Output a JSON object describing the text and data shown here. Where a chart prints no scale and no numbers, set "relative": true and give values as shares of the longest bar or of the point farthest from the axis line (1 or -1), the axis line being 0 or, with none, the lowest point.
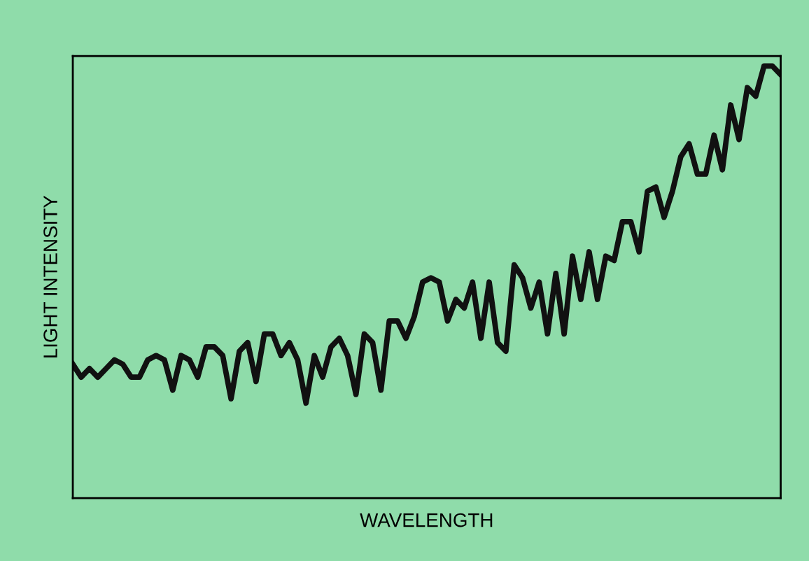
{
  "chart_data": {
    "type": "line",
    "xlabel": "WAVELENGTH",
    "ylabel": "LIGHT INTENSITY",
    "relative": true,
    "grid": false,
    "legend": false,
    "marker": "none",
    "line_style": "solid",
    "categories": [
      null,
      null,
      null,
      null,
      null,
      null,
      null,
      null,
      null,
      null,
      null,
      null,
      null,
      null,
      null,
      null,
      null,
      null,
      null,
      null,
      null,
      null,
      null,
      null,
      null,
      null,
      null,
      null,
      null,
      null,
      null,
      null,
      null,
      null,
      null,
      null,
      null,
      null,
      null,
      null,
      null,
      null,
      null,
      null,
      null,
      null,
      null,
      null,
      null,
      null,
      null,
      null,
      null,
      null,
      null,
      null,
      null,
      null,
      null,
      null,
      null,
      null,
      null,
      null,
      null,
      null,
      null,
      null,
      null,
      null,
      null,
      null,
      null,
      null,
      null,
      null,
      null,
      null,
      null,
      null,
      null,
      null,
      null,
      null,
      null,
      null
    ],
    "series": [
      {
        "color": "#111111",
        "values": [
          0.31,
          0.28,
          0.3,
          0.28,
          0.3,
          0.32,
          0.31,
          0.28,
          0.28,
          0.32,
          0.33,
          0.32,
          0.25,
          0.33,
          0.32,
          0.28,
          0.35,
          0.35,
          0.33,
          0.23,
          0.34,
          0.36,
          0.27,
          0.38,
          0.38,
          0.33,
          0.36,
          0.32,
          0.22,
          0.33,
          0.28,
          0.35,
          0.37,
          0.33,
          0.24,
          0.38,
          0.36,
          0.25,
          0.41,
          0.41,
          0.37,
          0.42,
          0.5,
          0.51,
          0.5,
          0.41,
          0.46,
          0.44,
          0.5,
          0.37,
          0.5,
          0.36,
          0.34,
          0.54,
          0.51,
          0.44,
          0.5,
          0.38,
          0.52,
          0.38,
          0.56,
          0.46,
          0.57,
          0.46,
          0.56,
          0.55,
          0.64,
          0.64,
          0.57,
          0.71,
          0.72,
          0.65,
          0.71,
          0.79,
          0.82,
          0.75,
          0.75,
          0.84,
          0.76,
          0.91,
          0.83,
          0.95,
          0.93,
          1,
          1,
          0.98
        ]
      }
    ]
  }
}
